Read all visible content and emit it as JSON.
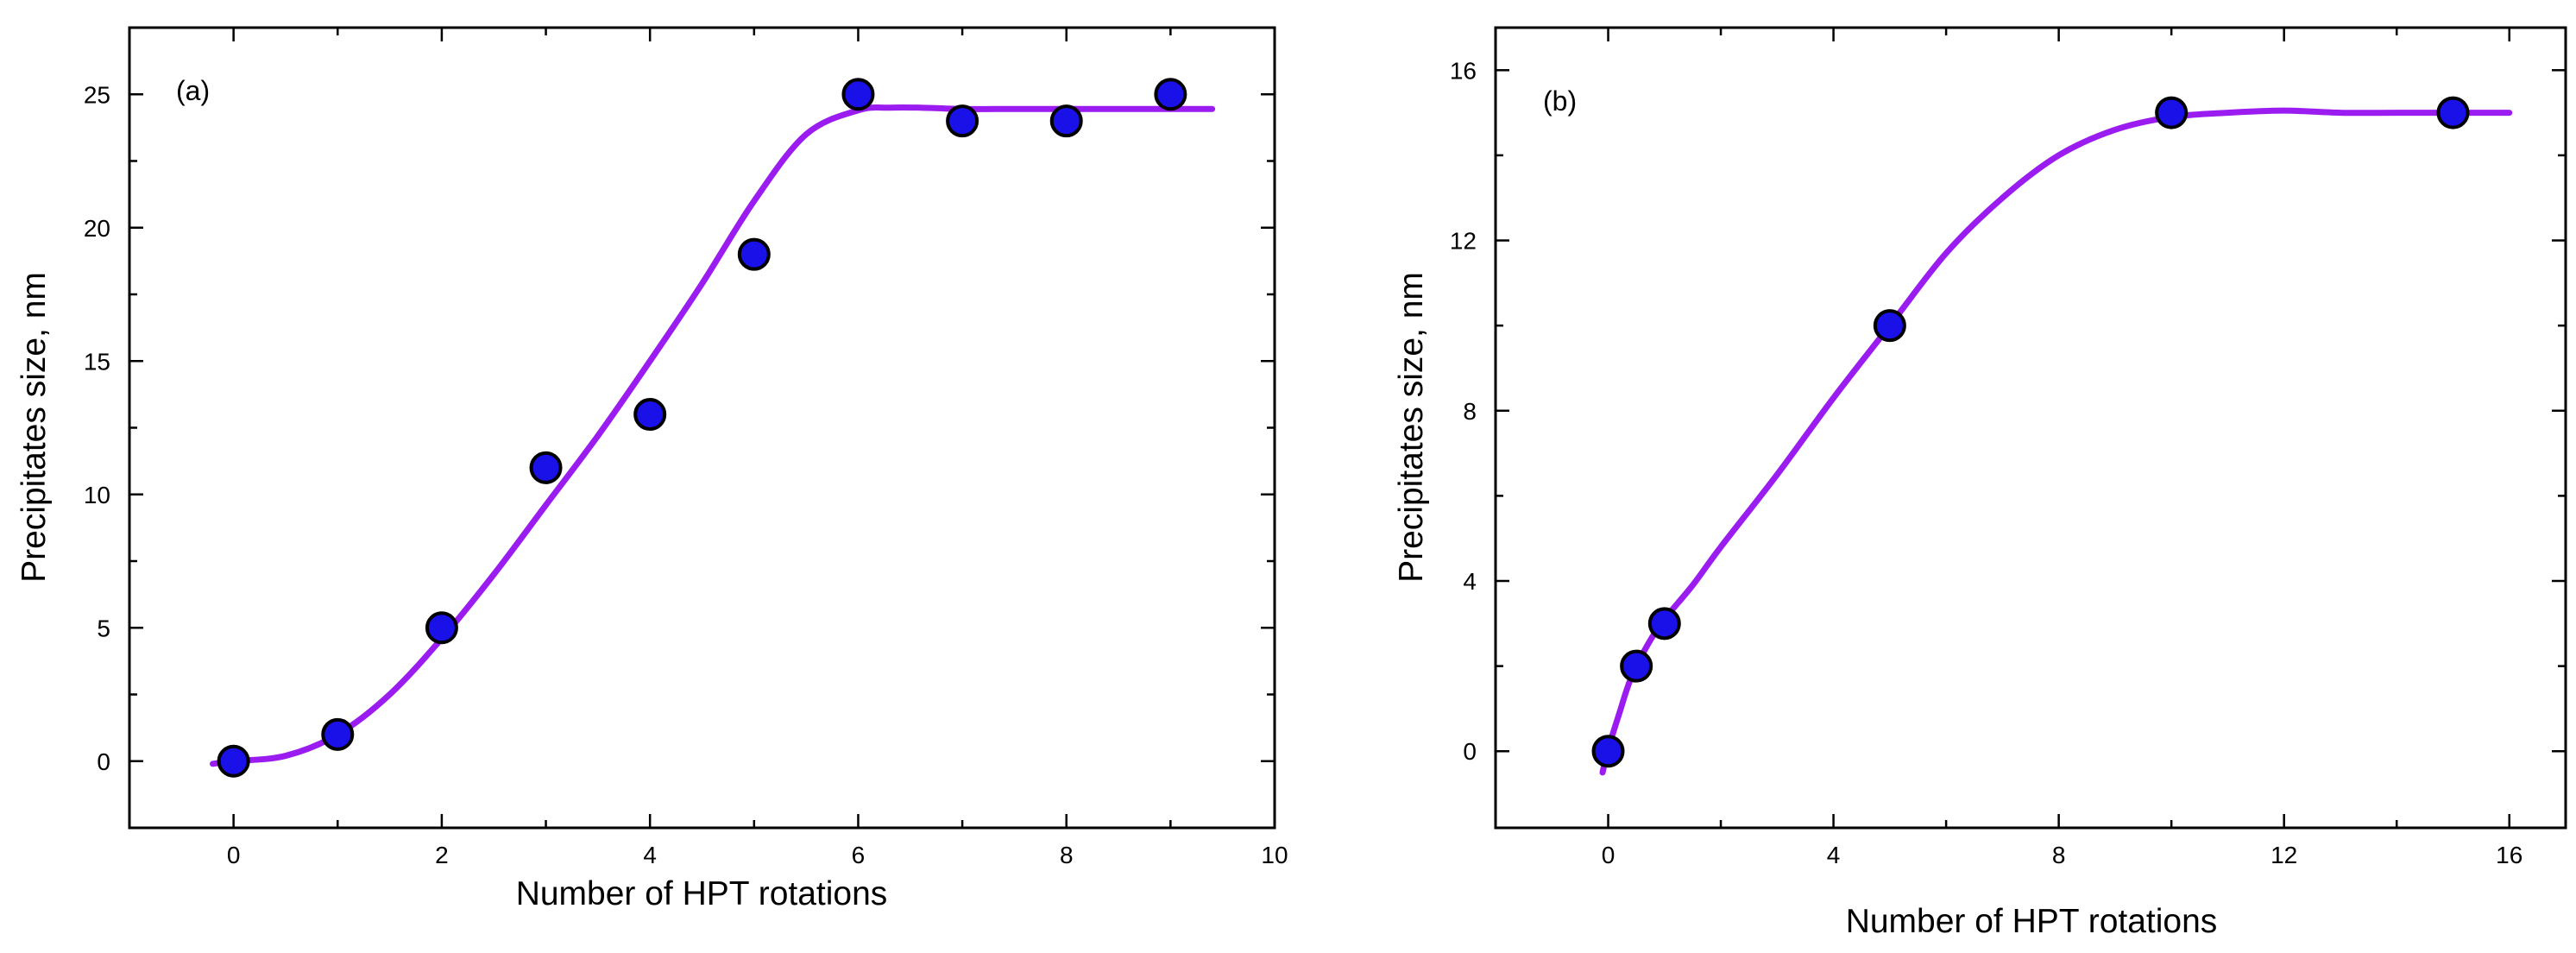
{
  "chart_data": [
    {
      "type": "scatter",
      "panel_label": "(a)",
      "xlabel": "Number of HPT rotations",
      "ylabel": "Precipitates size, nm",
      "xlim": [
        -1,
        10
      ],
      "ylim": [
        -2.5,
        27.5
      ],
      "xticks": [
        0,
        2,
        4,
        6,
        8,
        10
      ],
      "yticks": [
        0,
        5,
        10,
        15,
        20,
        25
      ],
      "xminor": [
        -1,
        1,
        3,
        5,
        7,
        9
      ],
      "yminor": [
        -2.5,
        2.5,
        7.5,
        12.5,
        17.5,
        22.5,
        27.5
      ],
      "grid": false,
      "series": [
        {
          "type": "scatter",
          "x": [
            0,
            1,
            2,
            3,
            4,
            5,
            6,
            7,
            8,
            9
          ],
          "y": [
            0,
            1,
            5,
            11,
            13,
            19,
            25,
            24,
            24,
            25
          ]
        },
        {
          "type": "line",
          "x": [
            -0.2,
            0,
            0.5,
            1,
            1.5,
            2,
            2.5,
            3,
            3.5,
            4,
            4.5,
            5,
            5.5,
            6,
            6.3,
            6.6,
            7,
            7.5,
            8,
            8.5,
            9,
            9.4
          ],
          "y": [
            -0.1,
            0,
            0.2,
            1.0,
            2.5,
            4.6,
            7.0,
            9.6,
            12.2,
            15.0,
            17.9,
            21.0,
            23.5,
            24.4,
            24.5,
            24.5,
            24.45,
            24.45,
            24.45,
            24.45,
            24.45,
            24.45
          ]
        }
      ],
      "colors": {
        "marker_fill": "#1a10e8",
        "marker_stroke": "#000000",
        "line": "#9b1cf0"
      }
    },
    {
      "type": "scatter",
      "panel_label": "(b)",
      "xlabel": "Number of HPT rotations",
      "ylabel": "Precipitates size, nm",
      "xlim": [
        -2,
        17
      ],
      "ylim": [
        -1.8,
        17
      ],
      "xticks": [
        0,
        4,
        8,
        12,
        16
      ],
      "yticks": [
        0,
        4,
        8,
        12,
        16
      ],
      "xminor": [
        -2,
        2,
        6,
        10,
        14
      ],
      "yminor": [
        2,
        6,
        10,
        14
      ],
      "grid": false,
      "series": [
        {
          "type": "scatter",
          "x": [
            0,
            0.5,
            1,
            5,
            10,
            15
          ],
          "y": [
            0,
            2,
            3,
            10,
            15,
            15
          ]
        },
        {
          "type": "line",
          "x": [
            -0.1,
            0,
            0.2,
            0.4,
            0.7,
            1,
            1.5,
            2,
            3,
            4,
            5,
            6,
            7,
            8,
            9,
            10,
            11,
            12,
            13,
            14,
            15,
            16
          ],
          "y": [
            -0.5,
            0.05,
            0.9,
            1.7,
            2.5,
            3.1,
            3.9,
            4.8,
            6.5,
            8.3,
            10.0,
            11.7,
            13.0,
            14.0,
            14.6,
            14.9,
            15.0,
            15.05,
            15.0,
            15.0,
            15.0,
            15.0
          ]
        }
      ],
      "colors": {
        "marker_fill": "#1a10e8",
        "marker_stroke": "#000000",
        "line": "#9b1cf0"
      }
    }
  ]
}
